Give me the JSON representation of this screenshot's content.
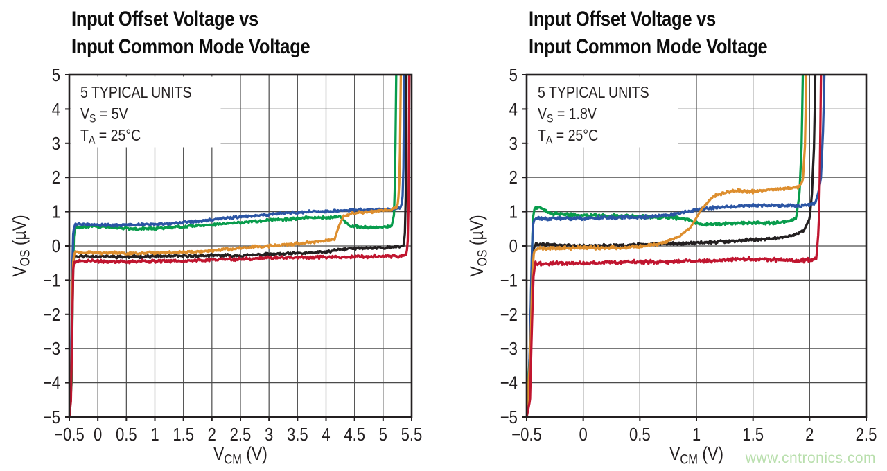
{
  "watermark": {
    "text": "www.cntronics.com",
    "color": "#b9dfad"
  },
  "style": {
    "text_color": "#231f20",
    "grid_color": "#4b4b4b",
    "border_color": "#231f20",
    "background": "#ffffff"
  },
  "chart_data": [
    {
      "type": "line",
      "title_lines": [
        "Input Offset Voltage vs",
        "Input Common Mode Voltage"
      ],
      "annotation_lines": [
        "5 TYPICAL UNITS",
        "V~S~ = 5V",
        "T~A~ = 25°C"
      ],
      "xlabel": "V~CM~ (V)",
      "ylabel": "V~OS~ (µV)",
      "xlim": [
        -0.5,
        5.5
      ],
      "ylim": [
        -5,
        5
      ],
      "xticks": [
        -0.5,
        0,
        0.5,
        1,
        1.5,
        2,
        2.5,
        3,
        3.5,
        4,
        4.5,
        5,
        5.5
      ],
      "xtick_labels": [
        "−0.5",
        "0",
        "0.5",
        "1",
        "1.5",
        "2",
        "2.5",
        "3",
        "3.5",
        "4",
        "4.5",
        "5",
        "5.5"
      ],
      "yticks": [
        5,
        4,
        3,
        2,
        1,
        0,
        -1,
        -2,
        -3,
        -4,
        -5
      ],
      "ytick_labels": [
        "5",
        "4",
        "3",
        "2",
        "1",
        "0",
        "−1",
        "−2",
        "−3",
        "−4",
        "−5"
      ],
      "grid": true,
      "legend": "none",
      "series": [
        {
          "name": "unit-black",
          "color": "#231f20",
          "noise": 0.05,
          "seed": 11,
          "anchors": [
            [
              -0.5,
              -5
            ],
            [
              -0.465,
              -4
            ],
            [
              -0.45,
              -2
            ],
            [
              -0.435,
              -0.6
            ],
            [
              -0.42,
              -0.3
            ],
            [
              0,
              -0.3
            ],
            [
              0.5,
              -0.32
            ],
            [
              1,
              -0.3
            ],
            [
              1.5,
              -0.3
            ],
            [
              2,
              -0.28
            ],
            [
              2.5,
              -0.28
            ],
            [
              3,
              -0.25
            ],
            [
              3.5,
              -0.22
            ],
            [
              4,
              -0.18
            ],
            [
              4.2,
              -0.12
            ],
            [
              4.4,
              -0.08
            ],
            [
              4.8,
              -0.06
            ],
            [
              5.2,
              -0.04
            ],
            [
              5.36,
              0
            ],
            [
              5.39,
              0.5
            ],
            [
              5.4,
              2
            ],
            [
              5.41,
              5
            ]
          ]
        },
        {
          "name": "unit-green",
          "color": "#089c4c",
          "noise": 0.05,
          "seed": 22,
          "anchors": [
            [
              -0.5,
              -5
            ],
            [
              -0.46,
              -4
            ],
            [
              -0.44,
              -1.5
            ],
            [
              -0.425,
              0.2
            ],
            [
              -0.4,
              0.52
            ],
            [
              -0.1,
              0.58
            ],
            [
              0.2,
              0.55
            ],
            [
              0.6,
              0.5
            ],
            [
              1,
              0.52
            ],
            [
              1.5,
              0.56
            ],
            [
              2,
              0.62
            ],
            [
              2.5,
              0.68
            ],
            [
              3,
              0.75
            ],
            [
              3.5,
              0.8
            ],
            [
              4,
              0.83
            ],
            [
              4.25,
              0.85
            ],
            [
              4.33,
              0.72
            ],
            [
              4.42,
              0.58
            ],
            [
              4.6,
              0.55
            ],
            [
              5,
              0.55
            ],
            [
              5.15,
              0.58
            ],
            [
              5.19,
              0.9
            ],
            [
              5.21,
              2
            ],
            [
              5.23,
              5
            ]
          ]
        },
        {
          "name": "unit-blue",
          "color": "#2b55a4",
          "noise": 0.05,
          "seed": 33,
          "anchors": [
            [
              -0.5,
              -5
            ],
            [
              -0.47,
              -4
            ],
            [
              -0.455,
              -2
            ],
            [
              -0.445,
              -0.5
            ],
            [
              -0.43,
              0.45
            ],
            [
              -0.4,
              0.62
            ],
            [
              -0.2,
              0.65
            ],
            [
              0,
              0.62
            ],
            [
              0.3,
              0.6
            ],
            [
              0.6,
              0.62
            ],
            [
              1,
              0.63
            ],
            [
              1.4,
              0.68
            ],
            [
              1.8,
              0.72
            ],
            [
              2.2,
              0.8
            ],
            [
              2.6,
              0.85
            ],
            [
              3,
              0.92
            ],
            [
              3.4,
              0.97
            ],
            [
              3.8,
              1
            ],
            [
              4.2,
              1.02
            ],
            [
              4.6,
              1.05
            ],
            [
              5,
              1.05
            ],
            [
              5.2,
              1.08
            ],
            [
              5.3,
              1.1
            ],
            [
              5.34,
              1.3
            ],
            [
              5.36,
              2.5
            ],
            [
              5.37,
              5
            ]
          ]
        },
        {
          "name": "unit-orange",
          "color": "#dd8e2e",
          "noise": 0.05,
          "seed": 44,
          "anchors": [
            [
              -0.5,
              -5
            ],
            [
              -0.46,
              -3.5
            ],
            [
              -0.445,
              -1.2
            ],
            [
              -0.43,
              -0.35
            ],
            [
              -0.4,
              -0.18
            ],
            [
              0,
              -0.2
            ],
            [
              0.5,
              -0.22
            ],
            [
              1,
              -0.2
            ],
            [
              1.5,
              -0.18
            ],
            [
              2,
              -0.15
            ],
            [
              2.4,
              -0.08
            ],
            [
              2.8,
              -0.02
            ],
            [
              3.2,
              0.02
            ],
            [
              3.6,
              0.08
            ],
            [
              4,
              0.15
            ],
            [
              4.15,
              0.2
            ],
            [
              4.22,
              0.55
            ],
            [
              4.3,
              0.85
            ],
            [
              4.45,
              0.95
            ],
            [
              4.8,
              1
            ],
            [
              5.1,
              1.05
            ],
            [
              5.25,
              1.12
            ],
            [
              5.28,
              1.6
            ],
            [
              5.3,
              3
            ],
            [
              5.31,
              5
            ]
          ]
        },
        {
          "name": "unit-red",
          "color": "#c0152f",
          "noise": 0.055,
          "seed": 55,
          "anchors": [
            [
              -0.5,
              -5
            ],
            [
              -0.47,
              -4.5
            ],
            [
              -0.45,
              -2.5
            ],
            [
              -0.435,
              -0.8
            ],
            [
              -0.42,
              -0.45
            ],
            [
              0,
              -0.44
            ],
            [
              0.5,
              -0.46
            ],
            [
              1,
              -0.45
            ],
            [
              1.5,
              -0.44
            ],
            [
              2,
              -0.4
            ],
            [
              2.5,
              -0.38
            ],
            [
              3,
              -0.35
            ],
            [
              3.5,
              -0.34
            ],
            [
              4,
              -0.33
            ],
            [
              4.5,
              -0.32
            ],
            [
              5,
              -0.3
            ],
            [
              5.3,
              -0.3
            ],
            [
              5.41,
              -0.28
            ],
            [
              5.44,
              0.3
            ],
            [
              5.45,
              2
            ],
            [
              5.46,
              5
            ]
          ]
        }
      ]
    },
    {
      "type": "line",
      "title_lines": [
        "Input Offset Voltage vs",
        "Input Common Mode Voltage"
      ],
      "annotation_lines": [
        "5 TYPICAL UNITS",
        "V~S~ = 1.8V",
        "T~A~ = 25°C"
      ],
      "xlabel": "V~CM~ (V)",
      "ylabel": "V~OS~ (µV)",
      "xlim": [
        -0.5,
        2.5
      ],
      "ylim": [
        -5,
        5
      ],
      "xticks": [
        -0.5,
        0,
        0.5,
        1,
        1.5,
        2,
        2.5
      ],
      "xtick_labels": [
        "−0.5",
        "0",
        "0.5",
        "1",
        "1.5",
        "2",
        "2.5"
      ],
      "yticks": [
        5,
        4,
        3,
        2,
        1,
        0,
        -1,
        -2,
        -3,
        -4,
        -5
      ],
      "ytick_labels": [
        "5",
        "4",
        "3",
        "2",
        "1",
        "0",
        "−1",
        "−2",
        "−3",
        "−4",
        "−5"
      ],
      "grid": true,
      "legend": "none",
      "series": [
        {
          "name": "unit-black",
          "color": "#231f20",
          "noise": 0.05,
          "seed": 66,
          "anchors": [
            [
              -0.5,
              -5
            ],
            [
              -0.47,
              -4
            ],
            [
              -0.455,
              -1.5
            ],
            [
              -0.44,
              -0.1
            ],
            [
              -0.42,
              0.05
            ],
            [
              0,
              0
            ],
            [
              0.3,
              0.02
            ],
            [
              0.6,
              0.05
            ],
            [
              0.9,
              0.08
            ],
            [
              1.2,
              0.12
            ],
            [
              1.5,
              0.18
            ],
            [
              1.7,
              0.22
            ],
            [
              1.85,
              0.3
            ],
            [
              1.95,
              0.45
            ],
            [
              2,
              0.8
            ],
            [
              2.02,
              1.5
            ],
            [
              2.04,
              3
            ],
            [
              2.05,
              5
            ]
          ]
        },
        {
          "name": "unit-green",
          "color": "#089c4c",
          "noise": 0.06,
          "seed": 77,
          "anchors": [
            [
              -0.5,
              -5
            ],
            [
              -0.47,
              -3
            ],
            [
              -0.455,
              -0.5
            ],
            [
              -0.445,
              0.8
            ],
            [
              -0.43,
              1.1
            ],
            [
              -0.38,
              1.12
            ],
            [
              -0.3,
              0.95
            ],
            [
              -0.1,
              0.9
            ],
            [
              0.2,
              0.88
            ],
            [
              0.5,
              0.85
            ],
            [
              0.8,
              0.82
            ],
            [
              0.92,
              0.78
            ],
            [
              1,
              0.65
            ],
            [
              1.1,
              0.62
            ],
            [
              1.3,
              0.65
            ],
            [
              1.5,
              0.68
            ],
            [
              1.7,
              0.66
            ],
            [
              1.8,
              0.7
            ],
            [
              1.88,
              0.8
            ],
            [
              1.91,
              1.5
            ],
            [
              1.93,
              3
            ],
            [
              1.94,
              5
            ]
          ]
        },
        {
          "name": "unit-blue",
          "color": "#2b55a4",
          "noise": 0.055,
          "seed": 88,
          "anchors": [
            [
              -0.5,
              -5
            ],
            [
              -0.48,
              -4
            ],
            [
              -0.465,
              -2
            ],
            [
              -0.455,
              -0.3
            ],
            [
              -0.445,
              0.6
            ],
            [
              -0.43,
              0.8
            ],
            [
              -0.2,
              0.8
            ],
            [
              0,
              0.8
            ],
            [
              0.3,
              0.82
            ],
            [
              0.6,
              0.85
            ],
            [
              0.8,
              0.92
            ],
            [
              1,
              1.05
            ],
            [
              1.15,
              1.12
            ],
            [
              1.3,
              1.15
            ],
            [
              1.5,
              1.18
            ],
            [
              1.7,
              1.18
            ],
            [
              1.9,
              1.18
            ],
            [
              2,
              1.2
            ],
            [
              2.05,
              1.25
            ],
            [
              2.08,
              1.6
            ],
            [
              2.1,
              2
            ],
            [
              2.12,
              3.5
            ],
            [
              2.13,
              5
            ]
          ]
        },
        {
          "name": "unit-orange",
          "color": "#dd8e2e",
          "noise": 0.06,
          "seed": 99,
          "anchors": [
            [
              -0.5,
              -5
            ],
            [
              -0.465,
              -3
            ],
            [
              -0.45,
              -0.8
            ],
            [
              -0.435,
              -0.15
            ],
            [
              -0.4,
              -0.08
            ],
            [
              0,
              -0.05
            ],
            [
              0.3,
              -0.05
            ],
            [
              0.5,
              -0.02
            ],
            [
              0.7,
              0.08
            ],
            [
              0.85,
              0.28
            ],
            [
              0.95,
              0.55
            ],
            [
              1.05,
              1.1
            ],
            [
              1.15,
              1.45
            ],
            [
              1.25,
              1.55
            ],
            [
              1.35,
              1.62
            ],
            [
              1.5,
              1.58
            ],
            [
              1.65,
              1.65
            ],
            [
              1.8,
              1.68
            ],
            [
              1.9,
              1.72
            ],
            [
              1.94,
              1.9
            ],
            [
              1.96,
              3
            ],
            [
              1.97,
              5
            ]
          ]
        },
        {
          "name": "unit-red",
          "color": "#c0152f",
          "noise": 0.065,
          "seed": 110,
          "anchors": [
            [
              -0.5,
              -5
            ],
            [
              -0.47,
              -4.5
            ],
            [
              -0.455,
              -2.5
            ],
            [
              -0.44,
              -0.9
            ],
            [
              -0.425,
              -0.52
            ],
            [
              0,
              -0.5
            ],
            [
              0.3,
              -0.48
            ],
            [
              0.6,
              -0.47
            ],
            [
              0.9,
              -0.45
            ],
            [
              1.2,
              -0.42
            ],
            [
              1.4,
              -0.38
            ],
            [
              1.6,
              -0.4
            ],
            [
              1.8,
              -0.42
            ],
            [
              1.95,
              -0.42
            ],
            [
              2.03,
              -0.4
            ],
            [
              2.06,
              -0.35
            ],
            [
              2.08,
              0.5
            ],
            [
              2.09,
              2
            ],
            [
              2.1,
              5
            ]
          ]
        }
      ]
    }
  ]
}
